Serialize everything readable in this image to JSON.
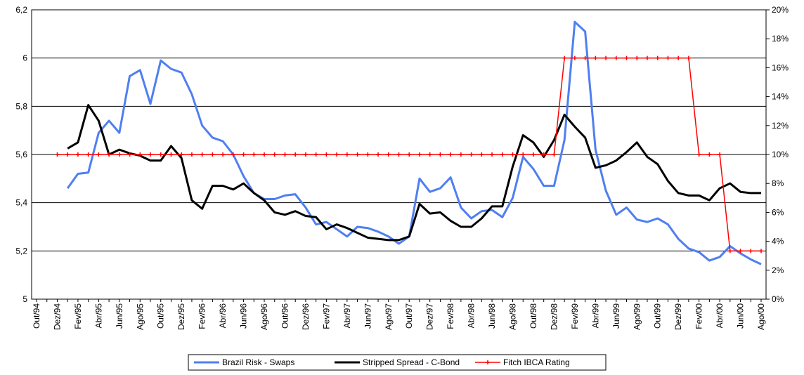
{
  "chart_data": {
    "type": "line",
    "categories": [
      "Out/94",
      null,
      "Dez/94",
      null,
      "Fev/95",
      null,
      "Abr/95",
      null,
      "Jun/95",
      null,
      "Ago/95",
      null,
      "Out/95",
      null,
      "Dez/95",
      null,
      "Fev/96",
      null,
      "Abr/96",
      null,
      "Jun/96",
      null,
      "Ago/96",
      null,
      "Out/96",
      null,
      "Dez/96",
      null,
      "Fev/97",
      null,
      "Abr/97",
      null,
      "Jun/97",
      null,
      "Ago/97",
      null,
      "Out/97",
      null,
      "Dez/97",
      null,
      "Fev/98",
      null,
      "Abr/98",
      null,
      "Jun/98",
      null,
      "Ago/98",
      null,
      "Out/98",
      null,
      "Dez/98",
      null,
      "Fev/99",
      null,
      "Abr/99",
      null,
      "Jun/99",
      null,
      "Ago/99",
      null,
      "Out/99",
      null,
      "Dez/99",
      null,
      "Fev/00",
      null,
      "Abr/00",
      null,
      "Jun/00",
      null,
      "Ago/00"
    ],
    "series": [
      {
        "name": "Brazil Risk - Swaps",
        "color": "#4f7ff0",
        "marker": false,
        "values": [
          null,
          null,
          null,
          5.46,
          5.52,
          5.525,
          5.69,
          5.74,
          5.69,
          5.925,
          5.95,
          5.81,
          5.99,
          5.955,
          5.94,
          5.85,
          5.72,
          5.67,
          5.655,
          5.6,
          5.51,
          5.44,
          5.415,
          5.415,
          5.43,
          5.435,
          5.38,
          5.31,
          5.32,
          5.29,
          5.26,
          5.3,
          5.295,
          5.28,
          5.26,
          5.23,
          5.26,
          5.5,
          5.445,
          5.46,
          5.505,
          5.38,
          5.335,
          5.365,
          5.37,
          5.34,
          5.42,
          5.59,
          5.54,
          5.47,
          5.47,
          5.66,
          6.15,
          6.11,
          5.62,
          5.45,
          5.35,
          5.38,
          5.33,
          5.32,
          5.335,
          5.31,
          5.25,
          5.21,
          5.195,
          5.16,
          5.175,
          5.22,
          5.19,
          5.165,
          5.145
        ]
      },
      {
        "name": "Stripped Spread - C-Bond",
        "color": "#000000",
        "marker": false,
        "values": [
          null,
          null,
          null,
          5.625,
          5.65,
          5.805,
          5.74,
          5.6,
          5.62,
          5.605,
          5.595,
          5.575,
          5.575,
          5.635,
          5.585,
          5.41,
          5.375,
          5.47,
          5.47,
          5.455,
          5.48,
          5.44,
          5.41,
          5.36,
          5.35,
          5.365,
          5.345,
          5.34,
          5.29,
          5.31,
          5.295,
          5.275,
          5.255,
          5.25,
          5.245,
          5.245,
          5.26,
          5.395,
          5.355,
          5.36,
          5.325,
          5.3,
          5.3,
          5.335,
          5.385,
          5.385,
          5.55,
          5.68,
          5.65,
          5.59,
          5.66,
          5.765,
          5.715,
          5.67,
          5.545,
          5.555,
          5.575,
          5.61,
          5.65,
          5.59,
          5.56,
          5.49,
          5.44,
          5.43,
          5.43,
          5.41,
          5.46,
          5.48,
          5.445,
          5.44,
          5.44
        ]
      },
      {
        "name": "Fitch IBCA Rating",
        "color": "#ff0000",
        "marker": true,
        "values": [
          null,
          null,
          5.6,
          5.6,
          5.6,
          5.6,
          5.6,
          5.6,
          5.6,
          5.6,
          5.6,
          5.6,
          5.6,
          5.6,
          5.6,
          5.6,
          5.6,
          5.6,
          5.6,
          5.6,
          5.6,
          5.6,
          5.6,
          5.6,
          5.6,
          5.6,
          5.6,
          5.6,
          5.6,
          5.6,
          5.6,
          5.6,
          5.6,
          5.6,
          5.6,
          5.6,
          5.6,
          5.6,
          5.6,
          5.6,
          5.6,
          5.6,
          5.6,
          5.6,
          5.6,
          5.6,
          5.6,
          5.6,
          5.6,
          5.6,
          5.6,
          6.0,
          6.0,
          6.0,
          6.0,
          6.0,
          6.0,
          6.0,
          6.0,
          6.0,
          6.0,
          6.0,
          6.0,
          6.0,
          5.6,
          5.6,
          5.6,
          5.2,
          5.2,
          5.2,
          5.2
        ]
      }
    ],
    "ylim": [
      5,
      6.2
    ],
    "yticks": [
      5,
      {
        "value": 5.2,
        "label": "5,2"
      },
      {
        "value": 5.4,
        "label": "5,4"
      },
      {
        "value": 5.6,
        "label": "5,6"
      },
      {
        "value": 5.8,
        "label": "5,8"
      },
      6,
      {
        "value": 6.2,
        "label": "6,2"
      }
    ],
    "y2lim": [
      0,
      20
    ],
    "y2ticks": [
      {
        "value": 0,
        "label": "0%"
      },
      {
        "value": 2,
        "label": "2%"
      },
      {
        "value": 4,
        "label": "4%"
      },
      {
        "value": 6,
        "label": "6%"
      },
      {
        "value": 8,
        "label": "8%"
      },
      {
        "value": 10,
        "label": "10%"
      },
      {
        "value": 12,
        "label": "12%"
      },
      {
        "value": 14,
        "label": "14%"
      },
      {
        "value": 16,
        "label": "16%"
      },
      {
        "value": 18,
        "label": "18%"
      },
      {
        "value": 20,
        "label": "20%"
      }
    ],
    "grid": true,
    "legend": "bottom"
  }
}
